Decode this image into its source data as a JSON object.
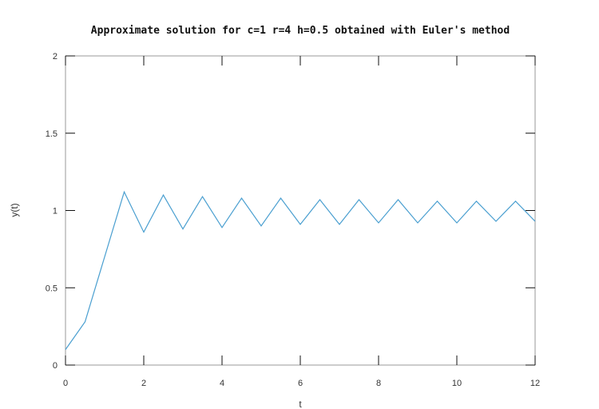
{
  "chart_data": {
    "type": "line",
    "title": "Approximate solution for c=1 r=4 h=0.5 obtained with Euler's method",
    "xlabel": "t",
    "ylabel": "y(t)",
    "xlim": [
      0,
      12
    ],
    "ylim": [
      0,
      2
    ],
    "x_ticks": [
      "0",
      "2",
      "4",
      "6",
      "8",
      "10",
      "12"
    ],
    "y_ticks": [
      "0",
      "0.5",
      "1",
      "1.5",
      "2"
    ],
    "grid": false,
    "series": [
      {
        "color": "#4a9fd0",
        "x": [
          0,
          0.5,
          1,
          1.5,
          2,
          2.5,
          3,
          3.5,
          4,
          4.5,
          5,
          5.5,
          6,
          6.5,
          7,
          7.5,
          8,
          8.5,
          9,
          9.5,
          10,
          10.5,
          11,
          11.5,
          12
        ],
        "y": [
          0.1,
          0.28,
          0.7,
          1.12,
          0.86,
          1.1,
          0.88,
          1.09,
          0.89,
          1.08,
          0.9,
          1.08,
          0.91,
          1.07,
          0.91,
          1.07,
          0.92,
          1.07,
          0.92,
          1.06,
          0.92,
          1.06,
          0.93,
          1.06,
          0.93
        ]
      }
    ]
  }
}
